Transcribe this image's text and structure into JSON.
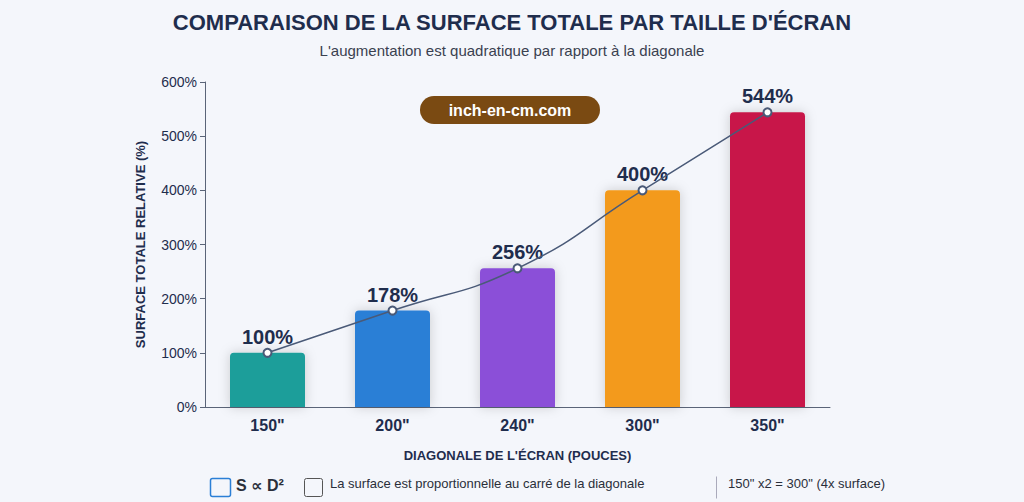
{
  "chart_data": {
    "type": "bar",
    "title": "COMPARAISON DE LA SURFACE TOTALE PAR TAILLE D'ÉCRAN",
    "subtitle": "L'augmentation est quadratique par rapport à la diagonale",
    "x_label": "DIAGONALE DE L'ÉCRAN (POUCES)",
    "y_label": "SURFACE TOTALE RELATIVE (%)",
    "categories": [
      "150\"",
      "200\"",
      "240\"",
      "300\"",
      "350\""
    ],
    "values": [
      100,
      178,
      256,
      400,
      544
    ],
    "value_labels": [
      "100%",
      "178%",
      "256%",
      "400%",
      "544%"
    ],
    "colors": [
      "#1a9e9a",
      "#2b7fd6",
      "#8b4fd8",
      "#f39a1c",
      "#c8184a"
    ],
    "ylim": [
      0,
      600
    ],
    "yticks": [
      {
        "value": 0,
        "label": "0%"
      },
      {
        "value": 100,
        "label": "100%"
      },
      {
        "value": 200,
        "label": "200%"
      },
      {
        "value": 300,
        "label": "300%"
      },
      {
        "value": 400,
        "label": "400%"
      },
      {
        "value": 500,
        "label": "500%"
      },
      {
        "value": 600,
        "label": "600%"
      }
    ],
    "grid": false,
    "data_labels": true,
    "watermark": "inch-en-cm.com",
    "footer": [
      "S ∝ D²",
      "La surface est proportionnelle au carré de la diagonale",
      "150\" x2 = 300\" (4x surface)"
    ]
  }
}
